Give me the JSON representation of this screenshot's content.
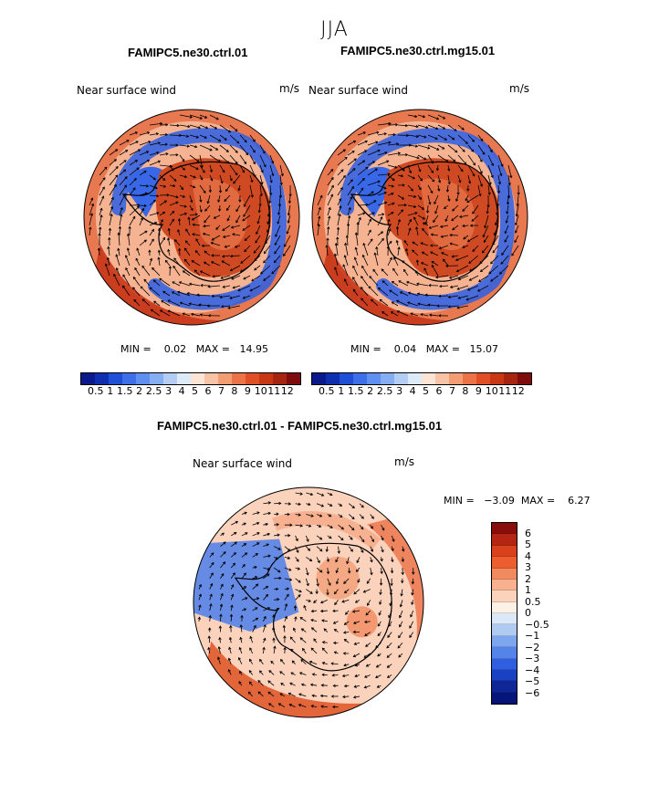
{
  "title": "JJA",
  "panels": [
    {
      "name": "FAMIPC5.ne30.ctrl.01",
      "field": "Near surface wind",
      "units": "m/s",
      "min_label": "MIN =",
      "min": "0.02",
      "max_label": "MAX =",
      "max": "14.95"
    },
    {
      "name": "FAMIPC5.ne30.ctrl.mg15.01",
      "field": "Near surface wind",
      "units": "m/s",
      "min_label": "MIN =",
      "min": "0.04",
      "max_label": "MAX =",
      "max": "15.07"
    }
  ],
  "diff_panel": {
    "name": "FAMIPC5.ne30.ctrl.01 - FAMIPC5.ne30.ctrl.mg15.01",
    "field": "Near surface wind",
    "units": "m/s",
    "min_label": "MIN =",
    "min": "−3.09",
    "max_label": "MAX =",
    "max": "6.27"
  },
  "colorbar_abs": {
    "ticks": [
      "0.5",
      "1",
      "1.5",
      "2",
      "2.5",
      "3",
      "4",
      "5",
      "6",
      "7",
      "8",
      "9",
      "10",
      "11",
      "12"
    ],
    "colors": [
      "#0a1a8c",
      "#0f2fb0",
      "#1e4fd6",
      "#3d6fe8",
      "#5f8ff0",
      "#86aef2",
      "#b3cdf5",
      "#ddeaf8",
      "#fde4d4",
      "#f8c3a6",
      "#f39d75",
      "#ec7248",
      "#e04f25",
      "#c93814",
      "#a62510",
      "#7e0c0c"
    ]
  },
  "colorbar_diff": {
    "ticks": [
      "6",
      "5",
      "4",
      "3",
      "2",
      "1",
      "0.5",
      "0",
      "−0.5",
      "−1",
      "−2",
      "−3",
      "−4",
      "−5",
      "−6"
    ],
    "colors": [
      "#8a0d0d",
      "#b52513",
      "#d9401c",
      "#ec5e2e",
      "#f28a5f",
      "#f7b190",
      "#fbd2bb",
      "#fdf0e4",
      "#dbe8f8",
      "#b0cbf2",
      "#7ea6ee",
      "#5483ea",
      "#2f5fe0",
      "#1a40c4",
      "#0e2696",
      "#061579"
    ]
  },
  "colors": {
    "land_contrast": "#cc3a15",
    "ocean_low": "#2a5fe6",
    "vector": "#000000"
  }
}
